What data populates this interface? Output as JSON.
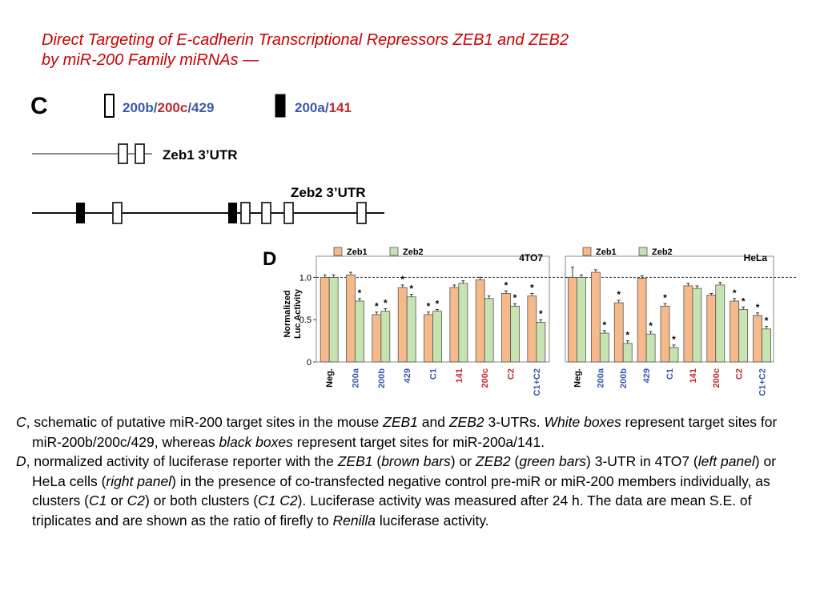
{
  "title": {
    "line1": "Direct Targeting of E-cadherin Transcriptional Repressors ZEB1 and ZEB2",
    "line2": "by miR-200 Family miRNAs —"
  },
  "panel_c": {
    "letter": "C",
    "legend_white": {
      "parts": [
        {
          "text": "200b",
          "color": "#3a5aa8"
        },
        {
          "text": "/",
          "color": "#3a5aa8"
        },
        {
          "text": "200c",
          "color": "#c0282d"
        },
        {
          "text": "/",
          "color": "#3a5aa8"
        },
        {
          "text": "429",
          "color": "#3a5aa8"
        }
      ]
    },
    "legend_black": {
      "parts": [
        {
          "text": "200a",
          "color": "#3a5aa8"
        },
        {
          "text": "/",
          "color": "#3a5aa8"
        },
        {
          "text": "141",
          "color": "#c0282d"
        }
      ]
    },
    "zeb1_label": "Zeb1 3’UTR",
    "zeb2_label": "Zeb2 3’UTR"
  },
  "panel_d": {
    "letter": "D",
    "ylabel_line1": "Normalized",
    "ylabel_line2": "Luc Activity"
  },
  "colors": {
    "zeb1": "#f6b98a",
    "zeb2": "#c6e3b2",
    "blue_label": "#3a5aa8",
    "red_label": "#c0282d"
  },
  "chart_data": [
    {
      "type": "bar",
      "panel_label": "4TO7",
      "categories": [
        "Neg.",
        "200a",
        "200b",
        "429",
        "C1",
        "141",
        "200c",
        "C2",
        "C1+C2"
      ],
      "category_colors": [
        "#000000",
        "#3a5aa8",
        "#3a5aa8",
        "#3a5aa8",
        "#3a5aa8",
        "#c0282d",
        "#c0282d",
        "#c0282d",
        "#3a5aa8"
      ],
      "series": [
        {
          "name": "Zeb1",
          "values": [
            1.0,
            1.03,
            0.56,
            0.88,
            0.56,
            0.88,
            0.97,
            0.81,
            0.78
          ],
          "errors": [
            0.03,
            0.03,
            0.03,
            0.03,
            0.03,
            0.03,
            0.03,
            0.03,
            0.03
          ],
          "significant": [
            false,
            false,
            true,
            true,
            true,
            false,
            false,
            true,
            true
          ]
        },
        {
          "name": "Zeb2",
          "values": [
            1.0,
            0.72,
            0.6,
            0.77,
            0.6,
            0.93,
            0.75,
            0.66,
            0.47
          ],
          "errors": [
            0.03,
            0.03,
            0.03,
            0.03,
            0.02,
            0.03,
            0.03,
            0.03,
            0.03
          ],
          "significant": [
            false,
            true,
            true,
            true,
            true,
            false,
            false,
            true,
            true
          ]
        }
      ],
      "yticks": [
        0,
        0.5,
        1.0
      ],
      "ylim": [
        0,
        1.25
      ],
      "reference_line": 1.0,
      "grid": false,
      "legend": "top"
    },
    {
      "type": "bar",
      "panel_label": "HeLa",
      "categories": [
        "Neg.",
        "200a",
        "200b",
        "429",
        "C1",
        "141",
        "200c",
        "C2",
        "C1+C2"
      ],
      "category_colors": [
        "#000000",
        "#3a5aa8",
        "#3a5aa8",
        "#3a5aa8",
        "#3a5aa8",
        "#c0282d",
        "#c0282d",
        "#c0282d",
        "#3a5aa8"
      ],
      "series": [
        {
          "name": "Zeb1",
          "values": [
            1.0,
            1.06,
            0.7,
            0.99,
            0.66,
            0.9,
            0.79,
            0.72,
            0.55
          ],
          "errors": [
            0.12,
            0.03,
            0.03,
            0.03,
            0.03,
            0.03,
            0.02,
            0.03,
            0.03
          ],
          "significant": [
            false,
            false,
            true,
            false,
            true,
            false,
            false,
            true,
            true
          ]
        },
        {
          "name": "Zeb2",
          "values": [
            1.0,
            0.34,
            0.22,
            0.33,
            0.17,
            0.87,
            0.91,
            0.62,
            0.39
          ],
          "errors": [
            0.03,
            0.03,
            0.03,
            0.03,
            0.03,
            0.03,
            0.03,
            0.03,
            0.03
          ],
          "significant": [
            false,
            true,
            true,
            true,
            true,
            false,
            false,
            true,
            true
          ]
        }
      ],
      "yticks": [
        0,
        0.5,
        1.0
      ],
      "ylim": [
        0,
        1.25
      ],
      "reference_line": 1.0,
      "grid": false,
      "legend": "top"
    }
  ],
  "caption": {
    "c_letter": "C",
    "c_text1": ", schematic of putative miR-200 target sites in the mouse ",
    "c_zeb1": "ZEB1",
    "c_and": " and ",
    "c_zeb2": "ZEB2",
    "c_text2": " 3-UTRs. ",
    "c_white_boxes": "White boxes",
    "c_text3": " represent target sites for miR-200b/200c/429, whereas ",
    "c_black_boxes": "black boxes",
    "c_text4": " represent target sites for miR-200a/141.",
    "d_letter": "D",
    "d_text1": ", normalized activity of luciferase reporter with the ",
    "d_zeb1": "ZEB1",
    "d_text2": " (",
    "d_brown": "brown bars",
    "d_text3": ") or ",
    "d_zeb2": "ZEB2",
    "d_text4": " (",
    "d_green": "green bars",
    "d_text5": ") 3-UTR in 4TO7 (",
    "d_left": "left panel",
    "d_text6": ") or HeLa cells (",
    "d_right": "right panel",
    "d_text7": ") in the presence of co-transfected negative control pre-miR or miR-200 members individually, as clusters (",
    "d_c1": "C1",
    "d_or": " or ",
    "d_c2": "C2",
    "d_text8": ") or both clusters (",
    "d_c1c2": "C1 C2",
    "d_text9": "). Luciferase activity was measured after 24 h. The data are mean  S.E. of triplicates and are shown as the ratio of firefly to ",
    "d_renilla": "Renilla",
    "d_text10": " luciferase activity."
  }
}
